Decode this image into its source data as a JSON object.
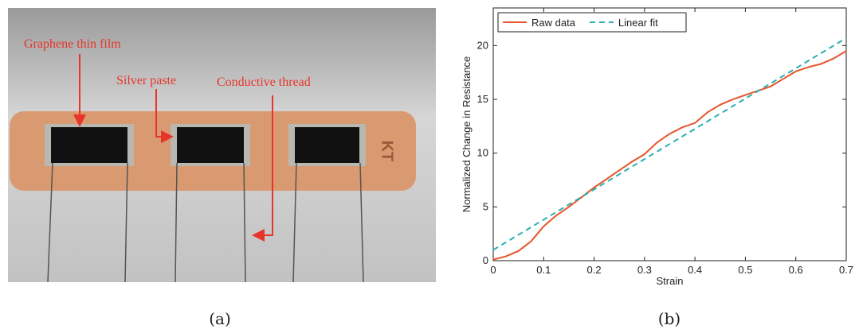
{
  "photo": {
    "labels": [
      "Graphene thin film",
      "Silver paste",
      "Conductive thread"
    ],
    "band_text": "KT",
    "caption": "(a)"
  },
  "chart_data": {
    "type": "line",
    "caption": "(b)",
    "xlabel": "Strain",
    "ylabel": "Normalized Change in Resistance",
    "xlim": [
      0,
      0.7
    ],
    "ylim": [
      0,
      23.5
    ],
    "xticks": [
      0,
      0.1,
      0.2,
      0.3,
      0.4,
      0.5,
      0.6,
      0.7
    ],
    "yticks": [
      0,
      5,
      10,
      15,
      20
    ],
    "legend": "upper left",
    "series": [
      {
        "name": "Raw data",
        "color": "#e8542a",
        "dash": false,
        "x": [
          0,
          0.025,
          0.05,
          0.075,
          0.1,
          0.125,
          0.15,
          0.175,
          0.2,
          0.225,
          0.25,
          0.275,
          0.3,
          0.325,
          0.35,
          0.375,
          0.4,
          0.425,
          0.45,
          0.475,
          0.5,
          0.525,
          0.55,
          0.575,
          0.6,
          0.625,
          0.65,
          0.675,
          0.7
        ],
        "values": [
          0.1,
          0.4,
          0.9,
          1.8,
          3.2,
          4.2,
          5.0,
          5.9,
          6.8,
          7.6,
          8.4,
          9.2,
          9.9,
          11.0,
          11.8,
          12.4,
          12.8,
          13.8,
          14.5,
          15.0,
          15.4,
          15.8,
          16.2,
          16.9,
          17.6,
          18.0,
          18.3,
          18.8,
          19.5
        ]
      },
      {
        "name": "Linear fit",
        "color": "#2ab0b0",
        "dash": true,
        "x": [
          0,
          0.7
        ],
        "values": [
          1.0,
          20.7
        ]
      }
    ]
  }
}
